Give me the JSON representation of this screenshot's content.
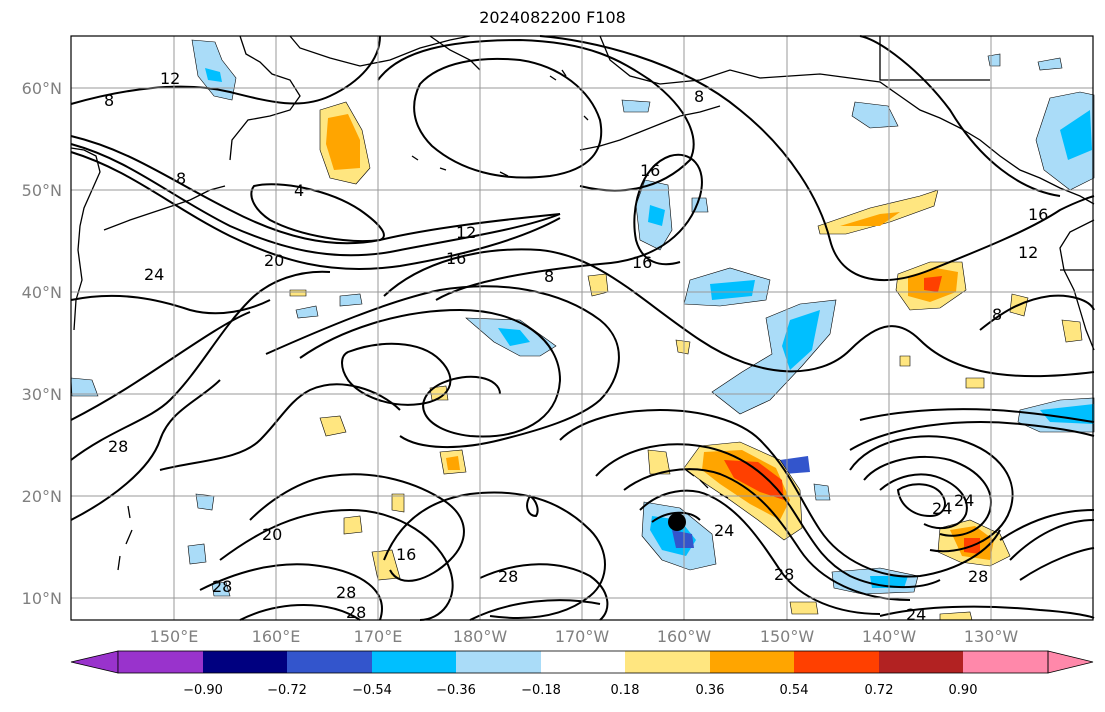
{
  "title": "2024082200 F108",
  "map": {
    "lon_ticks": [
      "150°E",
      "160°E",
      "170°E",
      "180°W",
      "170°W",
      "160°W",
      "150°W",
      "140°W",
      "130°W"
    ],
    "lat_ticks": [
      "60°N",
      "50°N",
      "40°N",
      "30°N",
      "20°N",
      "10°N"
    ],
    "contour_labels": [
      "12",
      "8",
      "8",
      "4",
      "24",
      "20",
      "12",
      "16",
      "8",
      "16",
      "16",
      "8",
      "16",
      "12",
      "8",
      "28",
      "20",
      "16",
      "28",
      "28",
      "28",
      "24",
      "28",
      "24",
      "28",
      "24",
      "24",
      "28"
    ],
    "grid": true
  },
  "colorbar": {
    "ticks": [
      "−0.90",
      "−0.72",
      "−0.54",
      "−0.36",
      "−0.18",
      "0.18",
      "0.36",
      "0.54",
      "0.72",
      "0.90"
    ],
    "colors": [
      "#9933cc",
      "#000080",
      "#3355cc",
      "#00bfff",
      "#aadcf8",
      "#ffffff",
      "#ffe680",
      "#ffa500",
      "#ff4000",
      "#b22222",
      "#ff88aa"
    ]
  },
  "colors": {
    "neg_light": "#aadcf8",
    "neg_mid": "#00bfff",
    "neg_dark": "#3355cc",
    "pos_light": "#ffe680",
    "pos_mid": "#ffa500",
    "pos_dark": "#ff4000"
  }
}
